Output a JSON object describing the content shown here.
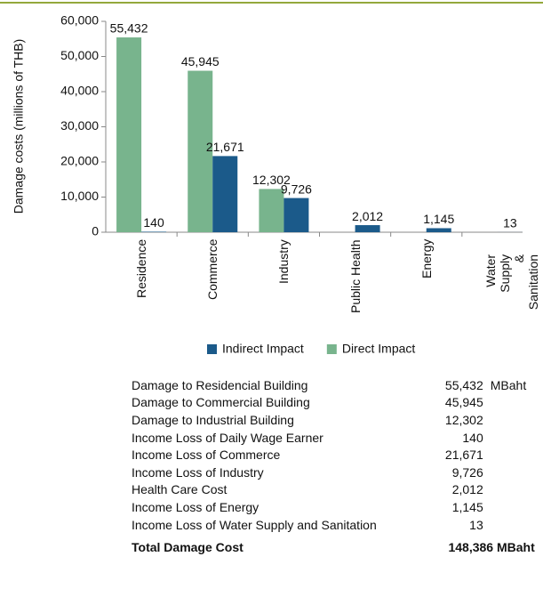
{
  "chart_data": {
    "type": "bar",
    "ylabel": "Damage costs (millions of THB)",
    "categories": [
      "Residence",
      "Commerce",
      "Industry",
      "Public Health",
      "Energy",
      "Water Supply\n& Sanitation"
    ],
    "series": [
      {
        "name": "Direct Impact",
        "color": "#78b48d",
        "values": [
          55432,
          45945,
          12302,
          null,
          null,
          null
        ],
        "value_labels": [
          "55,432",
          "45,945",
          "12,302",
          null,
          null,
          null
        ]
      },
      {
        "name": "Indirect Impact",
        "color": "#1b5a8a",
        "values": [
          140,
          21671,
          9726,
          2012,
          1145,
          13
        ],
        "value_labels": [
          "140",
          "21,671",
          "9,726",
          "2,012",
          "1,145",
          "13"
        ]
      }
    ],
    "ylim": [
      0,
      60000
    ],
    "yticks": [
      0,
      {
        "value": 10000,
        "label": "10,000"
      },
      {
        "value": 20000,
        "label": "20,000"
      },
      {
        "value": 30000,
        "label": "30,000"
      },
      {
        "value": 40000,
        "label": "40,000"
      },
      {
        "value": 50000,
        "label": "50,000"
      },
      {
        "value": 60000,
        "label": "60,000"
      }
    ],
    "grid": false
  },
  "table": {
    "rows": [
      [
        "Damage to Residencial Building",
        "55,432",
        "MBaht"
      ],
      [
        "Damage to Commercial Building",
        "45,945"
      ],
      [
        "Damage to Industrial Building",
        "12,302"
      ],
      [
        "Income Loss of Daily Wage Earner",
        "140"
      ],
      [
        "Income Loss of Commerce",
        "21,671"
      ],
      [
        "Income Loss of Industry",
        "9,726"
      ],
      [
        "Health Care Cost",
        "2,012"
      ],
      [
        "Income Loss of Energy",
        "1,145"
      ],
      [
        "Income Loss of Water Supply and Sanitation",
        "13"
      ]
    ],
    "total": [
      "Total Damage Cost",
      "148,386 MBaht"
    ]
  }
}
